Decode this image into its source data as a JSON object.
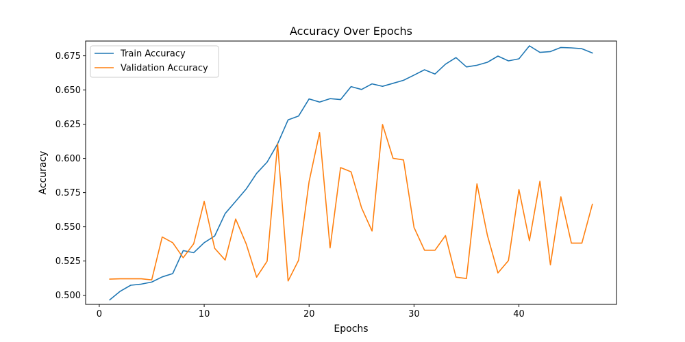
{
  "chart_data": {
    "type": "line",
    "title": "Accuracy Over Epochs",
    "xlabel": "Epochs",
    "ylabel": "Accuracy",
    "xlim": [
      -1.3,
      49.3
    ],
    "ylim": [
      0.4933,
      0.6858
    ],
    "xticks": [
      0,
      10,
      20,
      30,
      40
    ],
    "yticks": [
      0.5,
      0.525,
      0.55,
      0.575,
      0.6,
      0.625,
      0.65,
      0.675
    ],
    "ytick_labels": [
      "0.500",
      "0.525",
      "0.550",
      "0.575",
      "0.600",
      "0.625",
      "0.650",
      "0.675"
    ],
    "grid": false,
    "legend_position": "upper-left",
    "x": [
      1,
      2,
      3,
      4,
      5,
      6,
      7,
      8,
      9,
      10,
      11,
      12,
      13,
      14,
      15,
      16,
      17,
      18,
      19,
      20,
      21,
      22,
      23,
      24,
      25,
      26,
      27,
      28,
      29,
      30,
      31,
      32,
      33,
      34,
      35,
      36,
      37,
      38,
      39,
      40,
      41,
      42,
      43,
      44,
      45,
      46,
      47
    ],
    "series": [
      {
        "name": "Train Accuracy",
        "color": "#1f77b4",
        "values": [
          0.4966,
          0.5029,
          0.5073,
          0.5081,
          0.5096,
          0.5134,
          0.5158,
          0.5326,
          0.5311,
          0.5384,
          0.5433,
          0.5597,
          0.5686,
          0.5776,
          0.5891,
          0.5973,
          0.6107,
          0.6282,
          0.631,
          0.6435,
          0.6412,
          0.6437,
          0.643,
          0.6525,
          0.6504,
          0.6545,
          0.6527,
          0.6549,
          0.6571,
          0.6609,
          0.6648,
          0.6617,
          0.6689,
          0.6737,
          0.6669,
          0.6681,
          0.6703,
          0.6748,
          0.6713,
          0.6728,
          0.6823,
          0.6775,
          0.6781,
          0.6811,
          0.6808,
          0.6802,
          0.6771
        ]
      },
      {
        "name": "Validation Accuracy",
        "color": "#ff7f0e",
        "values": [
          0.5118,
          0.512,
          0.512,
          0.512,
          0.5112,
          0.5426,
          0.5384,
          0.5274,
          0.5376,
          0.5686,
          0.5343,
          0.5257,
          0.5557,
          0.5376,
          0.5132,
          0.5249,
          0.6107,
          0.5104,
          0.5256,
          0.5831,
          0.6189,
          0.5346,
          0.5933,
          0.5902,
          0.5639,
          0.5469,
          0.6248,
          0.6001,
          0.5989,
          0.5496,
          0.5329,
          0.5329,
          0.5436,
          0.5132,
          0.5122,
          0.5814,
          0.5436,
          0.5163,
          0.5253,
          0.5773,
          0.5398,
          0.5833,
          0.5222,
          0.5719,
          0.5381,
          0.5381,
          0.5665
        ]
      }
    ]
  }
}
